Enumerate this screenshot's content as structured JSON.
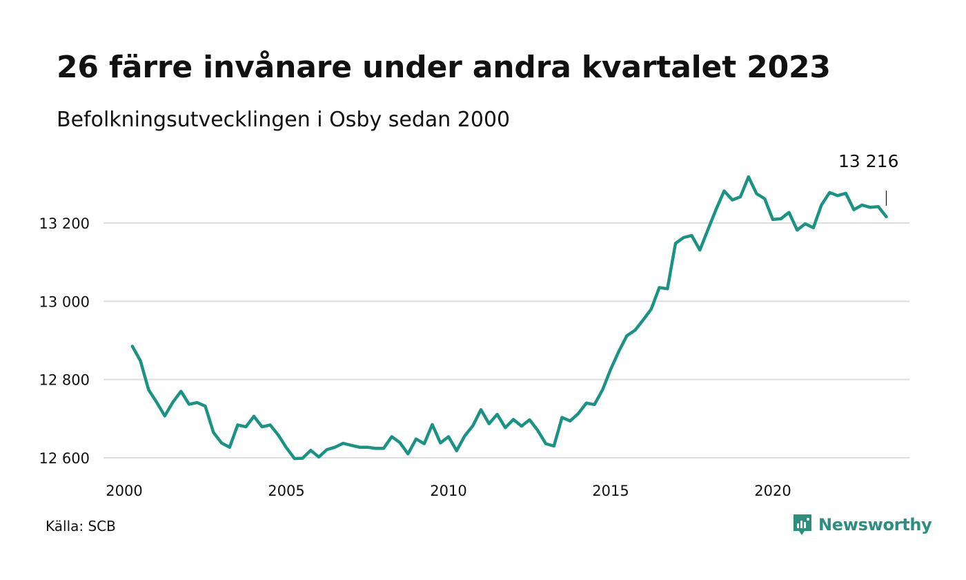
{
  "title": "26 färre invånare under andra kvartalet 2023",
  "subtitle": "Befolkningsutvecklingen i Osby sedan 2000",
  "source": "Källa: SCB",
  "brand": "Newsworthy",
  "colors": {
    "line": "#1a9384",
    "grid": "#dddddd",
    "brand": "#2a8f7f"
  },
  "chart_data": {
    "type": "line",
    "title": "26 färre invånare under andra kvartalet 2023",
    "subtitle": "Befolkningsutvecklingen i Osby sedan 2000",
    "xlabel": "",
    "ylabel": "",
    "xlim": [
      2000,
      2024
    ],
    "ylim": [
      12590,
      13330
    ],
    "x_ticks": [
      2000,
      2005,
      2010,
      2015,
      2020
    ],
    "x_tick_labels": [
      "2000",
      "2005",
      "2010",
      "2015",
      "2020"
    ],
    "y_ticks": [
      12600,
      12800,
      13000,
      13200
    ],
    "y_tick_labels": [
      "12 600",
      "12 800",
      "13 000",
      "13 200"
    ],
    "grid": "horizontal",
    "end_label": "13 216",
    "x": [
      2000.25,
      2000.5,
      2000.75,
      2001.0,
      2001.25,
      2001.5,
      2001.75,
      2002.0,
      2002.25,
      2002.5,
      2002.75,
      2003.0,
      2003.25,
      2003.5,
      2003.75,
      2004.0,
      2004.25,
      2004.5,
      2004.75,
      2005.0,
      2005.25,
      2005.5,
      2005.75,
      2006.0,
      2006.25,
      2006.5,
      2006.75,
      2007.0,
      2007.25,
      2007.5,
      2007.75,
      2008.0,
      2008.25,
      2008.5,
      2008.75,
      2009.0,
      2009.25,
      2009.5,
      2009.75,
      2010.0,
      2010.25,
      2010.5,
      2010.75,
      2011.0,
      2011.25,
      2011.5,
      2011.75,
      2012.0,
      2012.25,
      2012.5,
      2012.75,
      2013.0,
      2013.25,
      2013.5,
      2013.75,
      2014.0,
      2014.25,
      2014.5,
      2014.75,
      2015.0,
      2015.25,
      2015.5,
      2015.75,
      2016.0,
      2016.25,
      2016.5,
      2016.75,
      2017.0,
      2017.25,
      2017.5,
      2017.75,
      2018.0,
      2018.25,
      2018.5,
      2018.75,
      2019.0,
      2019.25,
      2019.5,
      2019.75,
      2020.0,
      2020.25,
      2020.5,
      2020.75,
      2021.0,
      2021.25,
      2021.5,
      2021.75,
      2022.0,
      2022.25,
      2022.5,
      2022.75,
      2023.0,
      2023.25,
      2023.5
    ],
    "series": [
      {
        "values": [
          12885,
          12848,
          12774,
          12742,
          12707,
          12742,
          12770,
          12737,
          12741,
          12732,
          12665,
          12638,
          12627,
          12684,
          12679,
          12706,
          12679,
          12684,
          12658,
          12626,
          12598,
          12599,
          12619,
          12602,
          12621,
          12627,
          12637,
          12632,
          12627,
          12627,
          12624,
          12624,
          12654,
          12639,
          12610,
          12648,
          12636,
          12685,
          12638,
          12654,
          12618,
          12656,
          12682,
          12723,
          12687,
          12711,
          12677,
          12698,
          12681,
          12697,
          12670,
          12636,
          12630,
          12703,
          12694,
          12713,
          12740,
          12736,
          12774,
          12826,
          12872,
          12912,
          12926,
          12952,
          12980,
          13035,
          13032,
          13148,
          13163,
          13168,
          13131,
          13183,
          13235,
          13282,
          13259,
          13267,
          13318,
          13275,
          13262,
          13209,
          13211,
          13227,
          13182,
          13198,
          13188,
          13246,
          13278,
          13270,
          13276,
          13234,
          13246,
          13240,
          13242,
          13216
        ]
      }
    ]
  }
}
